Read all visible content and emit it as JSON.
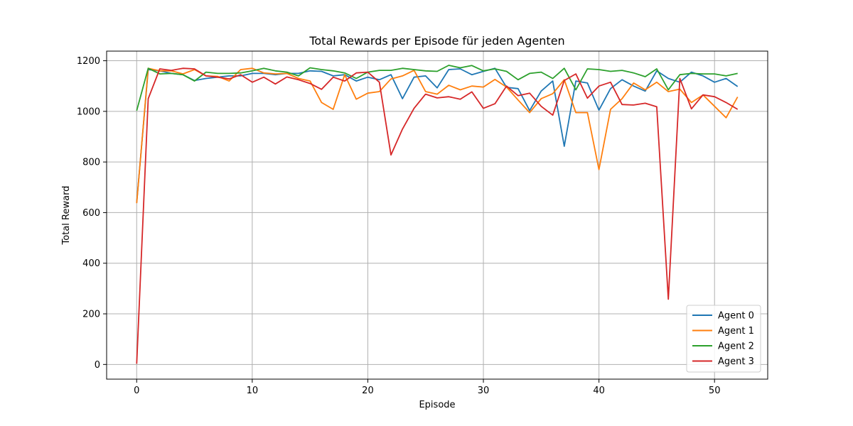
{
  "chart_data": {
    "type": "line",
    "title": "Total Rewards per Episode für jeden Agenten",
    "xlabel": "Episode",
    "ylabel": "Total Reward",
    "xlim": [
      -2.6,
      54.6
    ],
    "ylim": [
      -58,
      1238
    ],
    "xticks": [
      0,
      10,
      20,
      30,
      40,
      50
    ],
    "yticks": [
      0,
      200,
      400,
      600,
      800,
      1000,
      1200
    ],
    "grid": true,
    "legend_position": "lower right",
    "x": [
      0,
      1,
      2,
      3,
      4,
      5,
      6,
      7,
      8,
      9,
      10,
      11,
      12,
      13,
      14,
      15,
      16,
      17,
      18,
      19,
      20,
      21,
      22,
      23,
      24,
      25,
      26,
      27,
      28,
      29,
      30,
      31,
      32,
      33,
      34,
      35,
      36,
      37,
      38,
      39,
      40,
      41,
      42,
      43,
      44,
      45,
      46,
      47,
      48,
      49,
      50,
      51,
      52
    ],
    "series": [
      {
        "name": "Agent 0",
        "color": "#1f77b4",
        "values": [
          640,
          1165,
          1160,
          1150,
          1145,
          1122,
          1130,
          1135,
          1140,
          1140,
          1150,
          1150,
          1145,
          1150,
          1150,
          1160,
          1158,
          1140,
          1145,
          1120,
          1135,
          1125,
          1145,
          1050,
          1135,
          1140,
          1093,
          1165,
          1168,
          1145,
          1158,
          1170,
          1095,
          1090,
          1003,
          1080,
          1120,
          862,
          1120,
          1112,
          1005,
          1090,
          1125,
          1100,
          1080,
          1160,
          1130,
          1115,
          1155,
          1140,
          1115,
          1130,
          1098
        ]
      },
      {
        "name": "Agent 1",
        "color": "#ff7f0e",
        "values": [
          637,
          1170,
          1160,
          1160,
          1148,
          1165,
          1140,
          1138,
          1120,
          1165,
          1170,
          1152,
          1148,
          1150,
          1130,
          1120,
          1035,
          1008,
          1145,
          1048,
          1072,
          1078,
          1128,
          1140,
          1162,
          1078,
          1068,
          1103,
          1085,
          1100,
          1096,
          1126,
          1096,
          1045,
          995,
          1050,
          1070,
          1125,
          995,
          995,
          770,
          1008,
          1050,
          1112,
          1085,
          1115,
          1078,
          1088,
          1035,
          1065,
          1020,
          975,
          1057
        ]
      },
      {
        "name": "Agent 2",
        "color": "#2ca02c",
        "values": [
          1003,
          1170,
          1148,
          1150,
          1145,
          1120,
          1155,
          1150,
          1150,
          1152,
          1160,
          1170,
          1160,
          1155,
          1140,
          1172,
          1165,
          1160,
          1152,
          1130,
          1155,
          1162,
          1162,
          1170,
          1165,
          1160,
          1158,
          1182,
          1172,
          1181,
          1160,
          1168,
          1158,
          1125,
          1150,
          1155,
          1130,
          1170,
          1085,
          1168,
          1165,
          1158,
          1162,
          1152,
          1137,
          1168,
          1085,
          1145,
          1150,
          1148,
          1148,
          1140,
          1150
        ]
      },
      {
        "name": "Agent 3",
        "color": "#d62728",
        "values": [
          3,
          1050,
          1168,
          1162,
          1170,
          1168,
          1140,
          1135,
          1128,
          1145,
          1115,
          1135,
          1108,
          1136,
          1125,
          1110,
          1087,
          1135,
          1120,
          1152,
          1155,
          1115,
          828,
          930,
          1012,
          1068,
          1053,
          1058,
          1048,
          1077,
          1012,
          1030,
          1100,
          1062,
          1072,
          1020,
          985,
          1122,
          1148,
          1052,
          1100,
          1115,
          1027,
          1025,
          1032,
          1018,
          258,
          1130,
          1010,
          1065,
          1058,
          1035,
          1008
        ]
      }
    ]
  }
}
